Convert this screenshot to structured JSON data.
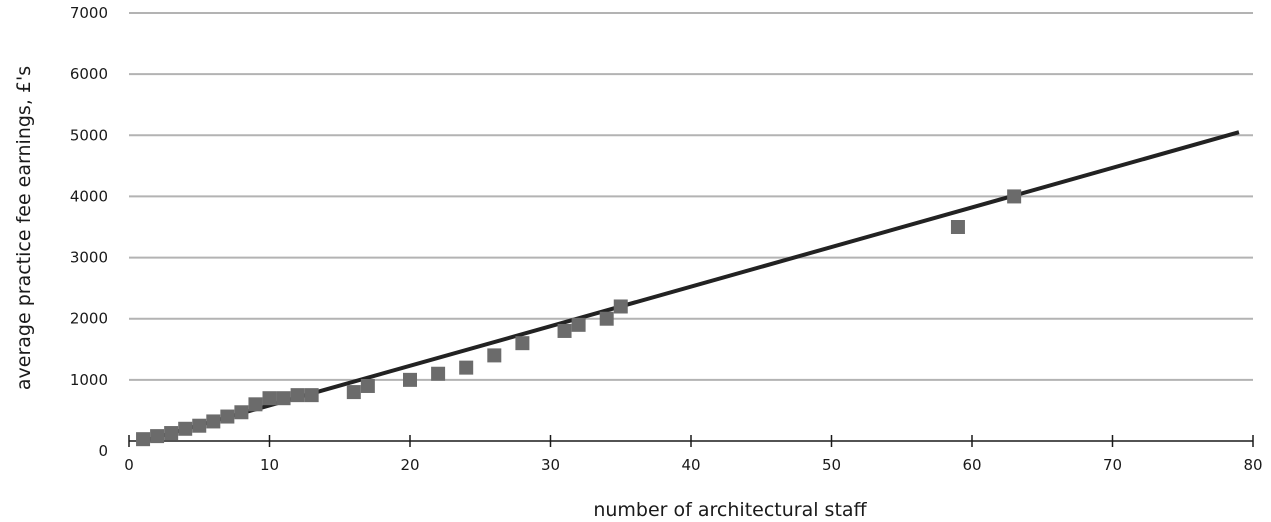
{
  "chart_data": {
    "type": "scatter",
    "title": "",
    "xlabel": "number of architectural staff",
    "ylabel": "average practice fee earnings, £'s",
    "xlim": [
      0,
      80
    ],
    "ylim": [
      0,
      7000
    ],
    "xticks": [
      0,
      10,
      20,
      30,
      40,
      50,
      60,
      70,
      80
    ],
    "yticks": [
      0,
      1000,
      2000,
      3000,
      4000,
      5000,
      6000,
      7000
    ],
    "grid": "horizontal",
    "legend": "none",
    "colors": {
      "points": "#6b6b6b",
      "trendline": "#222222",
      "grid": "#b3b3b3",
      "axis": "#1a1a1a"
    },
    "series": [
      {
        "type": "scatter",
        "marker": "square",
        "x": [
          1,
          2,
          3,
          4,
          5,
          6,
          7,
          8,
          9,
          10,
          11,
          12,
          13,
          16,
          17,
          20,
          22,
          24,
          26,
          28,
          31,
          32,
          34,
          35,
          59,
          63
        ],
        "y": [
          30,
          80,
          130,
          200,
          250,
          320,
          400,
          470,
          600,
          700,
          700,
          750,
          750,
          800,
          900,
          1000,
          1100,
          1200,
          1400,
          1600,
          1800,
          1900,
          2000,
          2200,
          3500,
          4000
        ]
      },
      {
        "type": "line",
        "trendline": true,
        "x": [
          1,
          79
        ],
        "y": [
          0,
          5050
        ]
      }
    ]
  }
}
